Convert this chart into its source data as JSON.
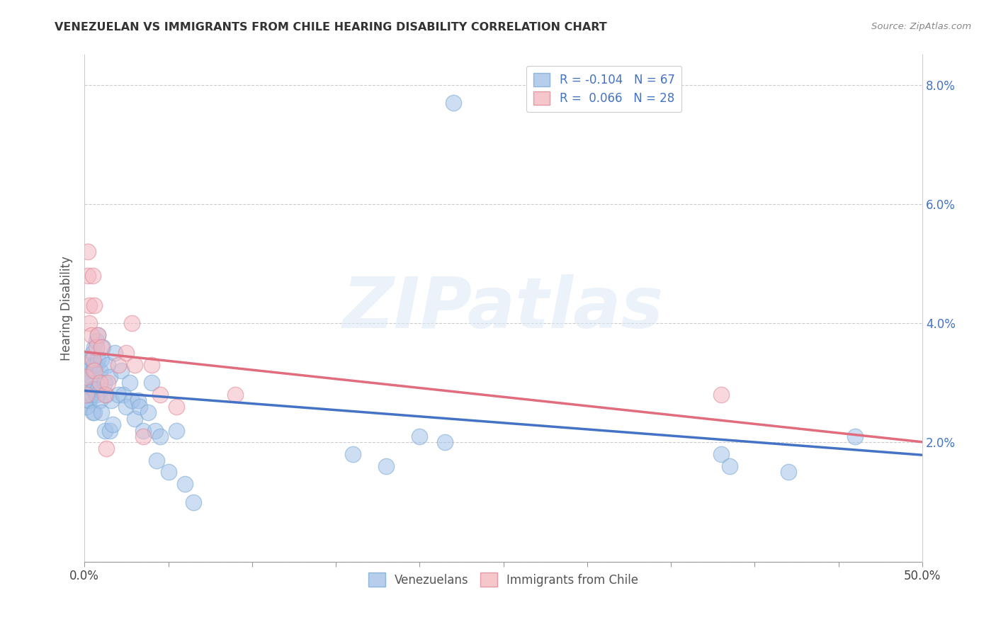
{
  "title": "VENEZUELAN VS IMMIGRANTS FROM CHILE HEARING DISABILITY CORRELATION CHART",
  "source": "Source: ZipAtlas.com",
  "ylabel": "Hearing Disability",
  "xlim": [
    0.0,
    0.5
  ],
  "ylim": [
    0.0,
    0.085
  ],
  "ytick_vals": [
    0.0,
    0.02,
    0.04,
    0.06,
    0.08
  ],
  "ytick_labels_right": [
    "",
    "2.0%",
    "4.0%",
    "6.0%",
    "8.0%"
  ],
  "xtick_edge_labels": [
    "0.0%",
    "50.0%"
  ],
  "venezuelan_color": "#a4c2e8",
  "venezuelan_edge": "#7baad4",
  "chile_color": "#f4b8c1",
  "chile_edge": "#e08898",
  "line_blue": "#4472c4",
  "line_pink": "#e06c7d",
  "R_venezuelan": -0.104,
  "N_venezuelan": 67,
  "R_chile": 0.066,
  "N_chile": 28,
  "watermark_text": "ZIPatlas",
  "legend_labels": [
    "Venezuelans",
    "Immigrants from Chile"
  ],
  "venezuelan_x": [
    0.001,
    0.001,
    0.001,
    0.002,
    0.002,
    0.003,
    0.003,
    0.003,
    0.004,
    0.004,
    0.004,
    0.005,
    0.005,
    0.005,
    0.005,
    0.006,
    0.006,
    0.006,
    0.006,
    0.007,
    0.007,
    0.007,
    0.008,
    0.008,
    0.008,
    0.009,
    0.009,
    0.01,
    0.01,
    0.011,
    0.012,
    0.012,
    0.013,
    0.014,
    0.015,
    0.015,
    0.016,
    0.017,
    0.018,
    0.02,
    0.022,
    0.023,
    0.025,
    0.027,
    0.028,
    0.03,
    0.032,
    0.033,
    0.035,
    0.038,
    0.04,
    0.042,
    0.043,
    0.045,
    0.05,
    0.055,
    0.06,
    0.065,
    0.16,
    0.18,
    0.2,
    0.215,
    0.22,
    0.38,
    0.385,
    0.42,
    0.46
  ],
  "venezuelan_y": [
    0.031,
    0.028,
    0.026,
    0.032,
    0.027,
    0.033,
    0.03,
    0.027,
    0.034,
    0.031,
    0.028,
    0.035,
    0.032,
    0.029,
    0.025,
    0.036,
    0.033,
    0.029,
    0.025,
    0.037,
    0.033,
    0.028,
    0.038,
    0.034,
    0.029,
    0.032,
    0.027,
    0.034,
    0.025,
    0.036,
    0.03,
    0.022,
    0.028,
    0.033,
    0.031,
    0.022,
    0.027,
    0.023,
    0.035,
    0.028,
    0.032,
    0.028,
    0.026,
    0.03,
    0.027,
    0.024,
    0.027,
    0.026,
    0.022,
    0.025,
    0.03,
    0.022,
    0.017,
    0.021,
    0.015,
    0.022,
    0.013,
    0.01,
    0.018,
    0.016,
    0.021,
    0.02,
    0.077,
    0.018,
    0.016,
    0.015,
    0.021
  ],
  "chile_x": [
    0.001,
    0.001,
    0.002,
    0.002,
    0.003,
    0.003,
    0.004,
    0.005,
    0.005,
    0.006,
    0.006,
    0.007,
    0.008,
    0.009,
    0.01,
    0.012,
    0.013,
    0.014,
    0.02,
    0.025,
    0.028,
    0.03,
    0.035,
    0.04,
    0.045,
    0.055,
    0.09,
    0.38
  ],
  "chile_y": [
    0.031,
    0.028,
    0.052,
    0.048,
    0.043,
    0.04,
    0.038,
    0.034,
    0.048,
    0.043,
    0.032,
    0.036,
    0.038,
    0.03,
    0.036,
    0.028,
    0.019,
    0.03,
    0.033,
    0.035,
    0.04,
    0.033,
    0.021,
    0.033,
    0.028,
    0.026,
    0.028,
    0.028
  ]
}
